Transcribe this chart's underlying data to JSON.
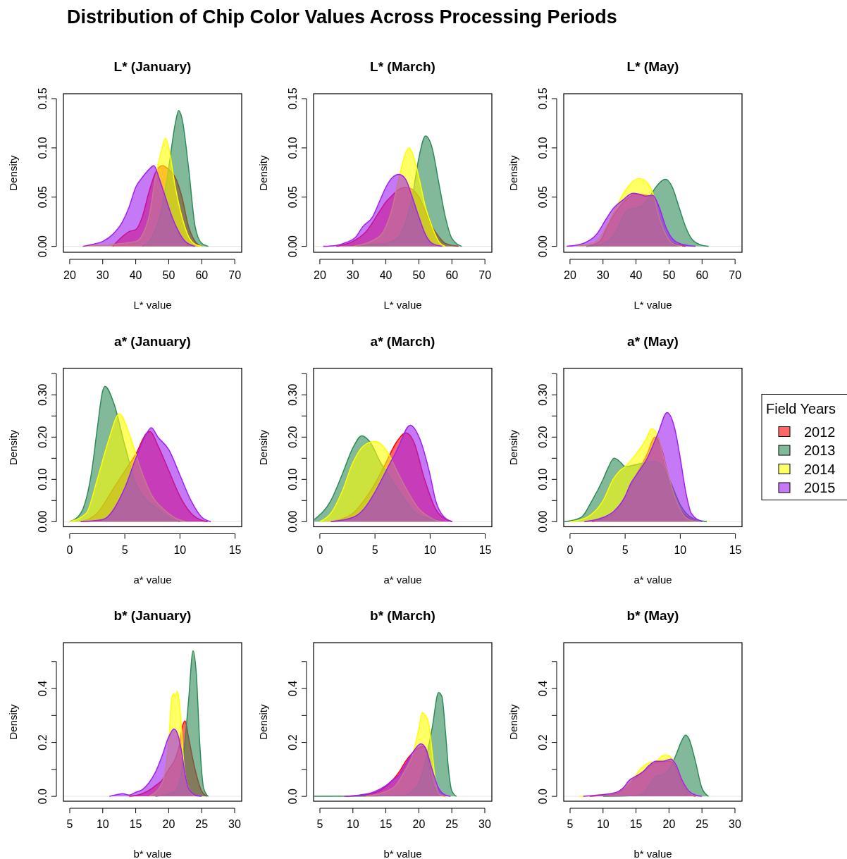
{
  "chart_data": [
    {
      "type": "area",
      "title": "L* (January)",
      "xlabel": "L* value",
      "ylabel": "Density",
      "annotations": [
        "Distribution of Chip Color Values Across Processing Periods"
      ],
      "xlim": [
        18.1,
        72.1
      ],
      "ylim": [
        -0.006,
        0.155
      ],
      "xticks": [
        20,
        30,
        40,
        50,
        60,
        70
      ],
      "yticks": [
        {
          "value": 0,
          "label": "0.00"
        },
        {
          "value": 0.05,
          "label": "0.05"
        },
        {
          "value": 0.1,
          "label": "0.10"
        },
        {
          "value": 0.15,
          "label": "0.15"
        }
      ],
      "ref_lines": [
        {
          "axis": "y",
          "value": 0,
          "color": "#e5e5e5"
        }
      ],
      "series": [
        {
          "color": "#ff0000",
          "x": [
            33,
            36,
            38,
            40,
            42,
            44,
            46,
            48,
            50,
            52,
            54,
            56,
            58,
            60
          ],
          "values": [
            0,
            0.01,
            0.015,
            0.017,
            0.03,
            0.055,
            0.075,
            0.082,
            0.078,
            0.07,
            0.05,
            0.02,
            0.005,
            0
          ]
        },
        {
          "color": "#2e8b57",
          "x": [
            42,
            45,
            48,
            50,
            52,
            53,
            54,
            56,
            58,
            60,
            62
          ],
          "values": [
            0,
            0.01,
            0.04,
            0.08,
            0.125,
            0.138,
            0.13,
            0.08,
            0.02,
            0.003,
            0
          ]
        },
        {
          "color": "#ffff00",
          "x": [
            24,
            40,
            44,
            46,
            48,
            49,
            50,
            52,
            54,
            56,
            58,
            60
          ],
          "values": [
            0,
            0.005,
            0.03,
            0.07,
            0.1,
            0.11,
            0.1,
            0.06,
            0.03,
            0.01,
            0.002,
            0
          ]
        },
        {
          "color": "#a020f0",
          "x": [
            24,
            27,
            30,
            33,
            36,
            38,
            40,
            42,
            44,
            45.5,
            47,
            49,
            51,
            53,
            55,
            58
          ],
          "values": [
            0,
            0.002,
            0.005,
            0.012,
            0.025,
            0.04,
            0.06,
            0.07,
            0.078,
            0.082,
            0.07,
            0.05,
            0.03,
            0.015,
            0.005,
            0
          ]
        }
      ]
    },
    {
      "type": "area",
      "title": "L* (March)",
      "xlabel": "L* value",
      "ylabel": "Density",
      "xlim": [
        18.1,
        72.1
      ],
      "ylim": [
        -0.006,
        0.155
      ],
      "xticks": [
        20,
        30,
        40,
        50,
        60,
        70
      ],
      "yticks": [
        {
          "value": 0,
          "label": "0.00"
        },
        {
          "value": 0.05,
          "label": "0.05"
        },
        {
          "value": 0.1,
          "label": "0.10"
        },
        {
          "value": 0.15,
          "label": "0.15"
        }
      ],
      "ref_lines": [
        {
          "axis": "y",
          "value": 0,
          "color": "#e5e5e5"
        }
      ],
      "series": [
        {
          "color": "#ff0000",
          "x": [
            25,
            30,
            34,
            38,
            40,
            42,
            44,
            46,
            48,
            50,
            52,
            54,
            56,
            58,
            62
          ],
          "values": [
            0,
            0.005,
            0.015,
            0.035,
            0.045,
            0.052,
            0.058,
            0.06,
            0.058,
            0.05,
            0.035,
            0.02,
            0.01,
            0.003,
            0
          ]
        },
        {
          "color": "#2e8b57",
          "x": [
            30,
            36,
            40,
            44,
            46,
            48,
            50,
            52,
            54,
            56,
            58,
            60,
            63
          ],
          "values": [
            0,
            0.002,
            0.003,
            0.01,
            0.025,
            0.05,
            0.09,
            0.112,
            0.1,
            0.065,
            0.03,
            0.008,
            0
          ]
        },
        {
          "color": "#ffff00",
          "x": [
            30,
            38,
            42,
            44,
            46,
            47,
            48,
            50,
            52,
            54,
            56,
            58
          ],
          "values": [
            0,
            0.01,
            0.04,
            0.07,
            0.095,
            0.1,
            0.095,
            0.07,
            0.04,
            0.02,
            0.005,
            0
          ]
        },
        {
          "color": "#a020f0",
          "x": [
            21,
            25,
            28,
            31,
            33,
            36,
            38,
            40,
            42,
            44,
            46,
            48,
            50,
            52,
            54,
            57
          ],
          "values": [
            0,
            0.001,
            0.004,
            0.01,
            0.02,
            0.03,
            0.045,
            0.06,
            0.07,
            0.073,
            0.068,
            0.05,
            0.03,
            0.012,
            0.003,
            0
          ]
        }
      ]
    },
    {
      "type": "area",
      "title": "L* (May)",
      "xlabel": "L* value",
      "ylabel": "Density",
      "xlim": [
        18.1,
        72.1
      ],
      "ylim": [
        -0.006,
        0.155
      ],
      "xticks": [
        20,
        30,
        40,
        50,
        60,
        70
      ],
      "yticks": [
        {
          "value": 0,
          "label": "0.00"
        },
        {
          "value": 0.05,
          "label": "0.05"
        },
        {
          "value": 0.1,
          "label": "0.10"
        },
        {
          "value": 0.15,
          "label": "0.15"
        }
      ],
      "ref_lines": [
        {
          "axis": "y",
          "value": 0,
          "color": "#e5e5e5"
        }
      ],
      "series": [
        {
          "color": "#ff0000",
          "x": [
            25,
            29,
            32,
            35,
            38,
            40,
            43,
            45,
            47,
            49,
            52,
            55
          ],
          "values": [
            0,
            0.005,
            0.025,
            0.04,
            0.05,
            0.053,
            0.052,
            0.05,
            0.03,
            0.01,
            0.002,
            0
          ]
        },
        {
          "color": "#2e8b57",
          "x": [
            25,
            30,
            34,
            36,
            38,
            40,
            42,
            44,
            46,
            48,
            49,
            51,
            53,
            55,
            57,
            60,
            62
          ],
          "values": [
            0,
            0.003,
            0.015,
            0.03,
            0.038,
            0.039,
            0.042,
            0.05,
            0.06,
            0.067,
            0.068,
            0.06,
            0.04,
            0.02,
            0.007,
            0.001,
            0
          ]
        },
        {
          "color": "#ffff00",
          "x": [
            22,
            28,
            31,
            34,
            37,
            40,
            41,
            43,
            45,
            47,
            49,
            51,
            54
          ],
          "values": [
            0,
            0.005,
            0.02,
            0.04,
            0.058,
            0.068,
            0.069,
            0.066,
            0.055,
            0.03,
            0.012,
            0.003,
            0
          ]
        },
        {
          "color": "#a020f0",
          "x": [
            19,
            24,
            28,
            31,
            33,
            36,
            39,
            41,
            43,
            45,
            47,
            49,
            51,
            54,
            58
          ],
          "values": [
            0,
            0.003,
            0.012,
            0.028,
            0.038,
            0.047,
            0.054,
            0.053,
            0.051,
            0.052,
            0.04,
            0.02,
            0.008,
            0.002,
            0
          ]
        }
      ]
    },
    {
      "type": "area",
      "title": "a* (January)",
      "xlabel": "a* value",
      "ylabel": "Density",
      "xlim": [
        -0.57,
        15.6
      ],
      "ylim": [
        -0.012,
        0.363
      ],
      "xticks": [
        0,
        5,
        10,
        15
      ],
      "yticks": [
        {
          "value": 0,
          "label": "0.00"
        },
        {
          "value": 0.05,
          "label": null
        },
        {
          "value": 0.1,
          "label": "0.10"
        },
        {
          "value": 0.15,
          "label": null
        },
        {
          "value": 0.2,
          "label": "0.20"
        },
        {
          "value": 0.25,
          "label": null
        },
        {
          "value": 0.3,
          "label": "0.30"
        },
        {
          "value": 0.35,
          "label": null
        }
      ],
      "ref_lines": [
        {
          "axis": "y",
          "value": 0,
          "color": "#e5e5e5"
        }
      ],
      "series": [
        {
          "color": "#ff0000",
          "x": [
            1,
            2.5,
            4,
            5,
            6,
            7,
            7.3,
            8,
            9,
            10,
            11,
            12,
            12.5
          ],
          "values": [
            0,
            0.02,
            0.08,
            0.12,
            0.16,
            0.21,
            0.213,
            0.18,
            0.12,
            0.06,
            0.02,
            0.003,
            0
          ]
        },
        {
          "color": "#2e8b57",
          "x": [
            0,
            1,
            2,
            2.5,
            3,
            3.2,
            4,
            5,
            6,
            7,
            8,
            9,
            10
          ],
          "values": [
            0,
            0.02,
            0.12,
            0.22,
            0.31,
            0.32,
            0.28,
            0.18,
            0.09,
            0.05,
            0.03,
            0.01,
            0
          ]
        },
        {
          "color": "#ffff00",
          "x": [
            0,
            1.5,
            2.5,
            3.5,
            4.5,
            5.5,
            6.5,
            7.5,
            8.5,
            9.5,
            10.5
          ],
          "values": [
            0,
            0.02,
            0.1,
            0.19,
            0.255,
            0.2,
            0.12,
            0.06,
            0.03,
            0.01,
            0
          ]
        },
        {
          "color": "#a020f0",
          "x": [
            1,
            3,
            5,
            6,
            7,
            7.4,
            8,
            9,
            10,
            11,
            12,
            12.8
          ],
          "values": [
            0,
            0.005,
            0.08,
            0.15,
            0.21,
            0.222,
            0.2,
            0.17,
            0.11,
            0.05,
            0.01,
            0
          ]
        }
      ]
    },
    {
      "type": "area",
      "title": "a* (March)",
      "xlabel": "a* value",
      "ylabel": "Density",
      "xlim": [
        -0.57,
        15.6
      ],
      "ylim": [
        -0.012,
        0.363
      ],
      "xticks": [
        0,
        5,
        10,
        15
      ],
      "yticks": [
        {
          "value": 0,
          "label": "0.00"
        },
        {
          "value": 0.05,
          "label": null
        },
        {
          "value": 0.1,
          "label": "0.10"
        },
        {
          "value": 0.15,
          "label": null
        },
        {
          "value": 0.2,
          "label": "0.20"
        },
        {
          "value": 0.25,
          "label": null
        },
        {
          "value": 0.3,
          "label": "0.30"
        },
        {
          "value": 0.35,
          "label": null
        }
      ],
      "ref_lines": [
        {
          "axis": "y",
          "value": 0,
          "color": "#e5e5e5"
        }
      ],
      "series": [
        {
          "color": "#ff0000",
          "x": [
            1,
            3,
            4,
            5,
            6,
            7,
            7.8,
            8.5,
            9.5,
            10.5,
            11.5,
            12
          ],
          "values": [
            0,
            0.02,
            0.05,
            0.09,
            0.14,
            0.19,
            0.21,
            0.19,
            0.1,
            0.03,
            0.005,
            0
          ]
        },
        {
          "color": "#2e8b57",
          "x": [
            -0.5,
            1,
            2,
            3,
            3.8,
            4.5,
            5.5,
            6.5,
            7.5,
            8.5,
            9.5,
            10.5,
            11
          ],
          "values": [
            0.005,
            0.05,
            0.11,
            0.175,
            0.203,
            0.19,
            0.14,
            0.1,
            0.06,
            0.025,
            0.01,
            0.005,
            0
          ]
        },
        {
          "color": "#ffff00",
          "x": [
            0,
            1,
            2,
            3,
            4,
            5,
            6,
            7,
            8,
            9,
            10,
            11
          ],
          "values": [
            0,
            0.02,
            0.07,
            0.14,
            0.18,
            0.19,
            0.17,
            0.12,
            0.07,
            0.03,
            0.01,
            0
          ]
        },
        {
          "color": "#a020f0",
          "x": [
            1,
            3,
            4,
            5,
            6,
            7,
            8.2,
            9,
            10,
            10.5,
            11,
            12
          ],
          "values": [
            0,
            0.01,
            0.03,
            0.07,
            0.12,
            0.17,
            0.228,
            0.2,
            0.11,
            0.05,
            0.02,
            0
          ]
        }
      ]
    },
    {
      "type": "area",
      "title": "a* (May)",
      "xlabel": "a* value",
      "ylabel": "Density",
      "legend": "right",
      "legend_title": "Field Years",
      "xlim": [
        -0.57,
        15.6
      ],
      "ylim": [
        -0.012,
        0.363
      ],
      "xticks": [
        0,
        5,
        10,
        15
      ],
      "yticks": [
        {
          "value": 0,
          "label": "0.00"
        },
        {
          "value": 0.05,
          "label": null
        },
        {
          "value": 0.1,
          "label": "0.10"
        },
        {
          "value": 0.15,
          "label": null
        },
        {
          "value": 0.2,
          "label": "0.20"
        },
        {
          "value": 0.25,
          "label": null
        },
        {
          "value": 0.3,
          "label": "0.30"
        },
        {
          "value": 0.35,
          "label": null
        }
      ],
      "ref_lines": [
        {
          "axis": "y",
          "value": 0,
          "color": "#e5e5e5"
        }
      ],
      "series": [
        {
          "name": "2012",
          "color": "#ff0000",
          "x": [
            2,
            4,
            5,
            6,
            7,
            7.7,
            8.2,
            9,
            10,
            11,
            11.5
          ],
          "values": [
            0,
            0.02,
            0.06,
            0.11,
            0.16,
            0.2,
            0.18,
            0.1,
            0.03,
            0.005,
            0
          ]
        },
        {
          "name": "2013",
          "color": "#2e8b57",
          "x": [
            -0.5,
            1,
            2,
            3,
            3.5,
            4,
            4.6,
            5,
            6,
            7,
            7.5,
            8,
            9,
            10,
            11,
            12.4
          ],
          "values": [
            0,
            0.01,
            0.05,
            0.1,
            0.13,
            0.15,
            0.14,
            0.13,
            0.135,
            0.14,
            0.142,
            0.14,
            0.1,
            0.04,
            0.01,
            0
          ]
        },
        {
          "name": "2014",
          "color": "#ffff00",
          "x": [
            0,
            1.5,
            3,
            3.9,
            4.5,
            5,
            6,
            7,
            7.4,
            8,
            8.5,
            9.5,
            10.5,
            11.5
          ],
          "values": [
            0,
            0.01,
            0.05,
            0.1,
            0.12,
            0.13,
            0.16,
            0.2,
            0.22,
            0.2,
            0.15,
            0.06,
            0.01,
            0
          ]
        },
        {
          "name": "2015",
          "color": "#a020f0",
          "x": [
            1.3,
            3,
            4,
            5,
            5.5,
            6,
            7,
            8,
            8.8,
            9.5,
            10,
            10.5,
            11,
            12
          ],
          "values": [
            0,
            0.01,
            0.025,
            0.06,
            0.09,
            0.11,
            0.15,
            0.21,
            0.258,
            0.22,
            0.15,
            0.07,
            0.02,
            0
          ]
        }
      ]
    },
    {
      "type": "area",
      "title": "b* (January)",
      "xlabel": "b* value",
      "ylabel": "Density",
      "xlim": [
        4.04,
        31.07
      ],
      "ylim": [
        -0.018,
        0.57
      ],
      "xticks": [
        5,
        10,
        15,
        20,
        25,
        30
      ],
      "yticks": [
        {
          "value": 0,
          "label": "0.0"
        },
        {
          "value": 0.1,
          "label": null
        },
        {
          "value": 0.2,
          "label": "0.2"
        },
        {
          "value": 0.3,
          "label": null
        },
        {
          "value": 0.4,
          "label": "0.4"
        },
        {
          "value": 0.5,
          "label": null
        }
      ],
      "ref_lines": [
        {
          "axis": "y",
          "value": 0,
          "color": "#e5e5e5"
        }
      ],
      "series": [
        {
          "color": "#ff0000",
          "x": [
            14,
            16,
            17.5,
            18,
            19,
            20,
            21,
            21.7,
            22,
            22.5,
            23,
            24,
            25,
            25.8
          ],
          "values": [
            0,
            0.01,
            0.03,
            0.04,
            0.06,
            0.1,
            0.14,
            0.2,
            0.25,
            0.28,
            0.22,
            0.1,
            0.02,
            0
          ]
        },
        {
          "color": "#2e8b57",
          "x": [
            18,
            20,
            21,
            22,
            23,
            23.7,
            24.2,
            24.7,
            25.3,
            26
          ],
          "values": [
            0,
            0.01,
            0.02,
            0.1,
            0.35,
            0.54,
            0.45,
            0.2,
            0.03,
            0
          ]
        },
        {
          "color": "#ffff00",
          "x": [
            17,
            19,
            20,
            20.5,
            20.8,
            21,
            21.3,
            21.8,
            22.3,
            23,
            24
          ],
          "values": [
            0,
            0.05,
            0.2,
            0.37,
            0.38,
            0.37,
            0.39,
            0.3,
            0.12,
            0.03,
            0
          ]
        },
        {
          "color": "#a020f0",
          "x": [
            11,
            12.5,
            13,
            14,
            15,
            16,
            17,
            18,
            19,
            20,
            20.8,
            21.5,
            22,
            22.5,
            23,
            24,
            25
          ],
          "values": [
            0,
            0.008,
            0.01,
            0.005,
            0.015,
            0.025,
            0.05,
            0.09,
            0.15,
            0.22,
            0.25,
            0.22,
            0.16,
            0.08,
            0.03,
            0.005,
            0
          ]
        }
      ]
    },
    {
      "type": "area",
      "title": "b* (March)",
      "xlabel": "b* value",
      "ylabel": "Density",
      "xlim": [
        4.04,
        31.07
      ],
      "ylim": [
        -0.018,
        0.57
      ],
      "xticks": [
        5,
        10,
        15,
        20,
        25,
        30
      ],
      "yticks": [
        {
          "value": 0,
          "label": "0.0"
        },
        {
          "value": 0.1,
          "label": null
        },
        {
          "value": 0.2,
          "label": "0.2"
        },
        {
          "value": 0.3,
          "label": null
        },
        {
          "value": 0.4,
          "label": "0.4"
        },
        {
          "value": 0.5,
          "label": null
        }
      ],
      "ref_lines": [
        {
          "axis": "y",
          "value": 0,
          "color": "#e5e5e5"
        }
      ],
      "series": [
        {
          "color": "#ff0000",
          "x": [
            9,
            12,
            14,
            16,
            17,
            18,
            19,
            20,
            20.6,
            21,
            21.5,
            22,
            23,
            24
          ],
          "values": [
            0,
            0.007,
            0.02,
            0.06,
            0.09,
            0.13,
            0.16,
            0.18,
            0.185,
            0.18,
            0.12,
            0.06,
            0.01,
            0
          ]
        },
        {
          "color": "#2e8b57",
          "x": [
            4.1,
            15,
            18,
            19,
            20,
            21,
            22,
            23,
            23.5,
            24,
            24.5,
            25,
            25.7
          ],
          "values": [
            0,
            0.002,
            0.005,
            0.02,
            0.05,
            0.13,
            0.25,
            0.385,
            0.37,
            0.25,
            0.1,
            0.02,
            0
          ]
        },
        {
          "color": "#ffff00",
          "x": [
            12,
            16,
            18,
            19,
            20,
            20.5,
            21,
            21.5,
            22,
            22.5,
            23,
            24
          ],
          "values": [
            0,
            0.03,
            0.1,
            0.15,
            0.25,
            0.31,
            0.3,
            0.27,
            0.17,
            0.06,
            0.01,
            0
          ]
        },
        {
          "color": "#a020f0",
          "x": [
            8.7,
            11,
            13,
            15,
            16,
            17,
            18,
            19,
            20.3,
            21,
            22,
            23,
            24,
            24.8
          ],
          "values": [
            0,
            0.005,
            0.015,
            0.04,
            0.06,
            0.08,
            0.12,
            0.16,
            0.195,
            0.18,
            0.1,
            0.03,
            0.005,
            0
          ]
        }
      ]
    },
    {
      "type": "area",
      "title": "b* (May)",
      "xlabel": "b* value",
      "ylabel": "Density",
      "xlim": [
        4.04,
        31.07
      ],
      "ylim": [
        -0.018,
        0.57
      ],
      "xticks": [
        5,
        10,
        15,
        20,
        25,
        30
      ],
      "yticks": [
        {
          "value": 0,
          "label": "0.0"
        },
        {
          "value": 0.1,
          "label": null
        },
        {
          "value": 0.2,
          "label": "0.2"
        },
        {
          "value": 0.3,
          "label": null
        },
        {
          "value": 0.4,
          "label": "0.4"
        },
        {
          "value": 0.5,
          "label": null
        }
      ],
      "ref_lines": [
        {
          "axis": "y",
          "value": 0,
          "color": "#e5e5e5"
        }
      ],
      "series": [
        {
          "color": "#ff0000",
          "x": [
            8,
            12,
            14,
            16,
            18,
            20,
            21,
            22,
            23,
            24
          ],
          "values": [
            0,
            0.01,
            0.05,
            0.09,
            0.125,
            0.13,
            0.11,
            0.05,
            0.01,
            0
          ]
        },
        {
          "color": "#2e8b57",
          "x": [
            10,
            14,
            16,
            17,
            18,
            19,
            20,
            21,
            22,
            22.5,
            23,
            24,
            25,
            26
          ],
          "values": [
            0,
            0.002,
            0.01,
            0.04,
            0.075,
            0.08,
            0.1,
            0.15,
            0.21,
            0.227,
            0.215,
            0.13,
            0.03,
            0
          ]
        },
        {
          "color": "#ffff00",
          "x": [
            6.5,
            9,
            12,
            14,
            15,
            16,
            17,
            18,
            19,
            19.5,
            20,
            21,
            22,
            23,
            24,
            25
          ],
          "values": [
            0,
            0.005,
            0.015,
            0.05,
            0.08,
            0.11,
            0.125,
            0.13,
            0.15,
            0.153,
            0.15,
            0.12,
            0.06,
            0.02,
            0.003,
            0
          ]
        },
        {
          "color": "#a020f0",
          "x": [
            7,
            9,
            12,
            13,
            14,
            15,
            16,
            17,
            18,
            19,
            20.3,
            21,
            22,
            23,
            24,
            25
          ],
          "values": [
            0,
            0.004,
            0.015,
            0.03,
            0.06,
            0.075,
            0.09,
            0.115,
            0.13,
            0.13,
            0.138,
            0.12,
            0.06,
            0.02,
            0.005,
            0
          ]
        }
      ]
    }
  ]
}
